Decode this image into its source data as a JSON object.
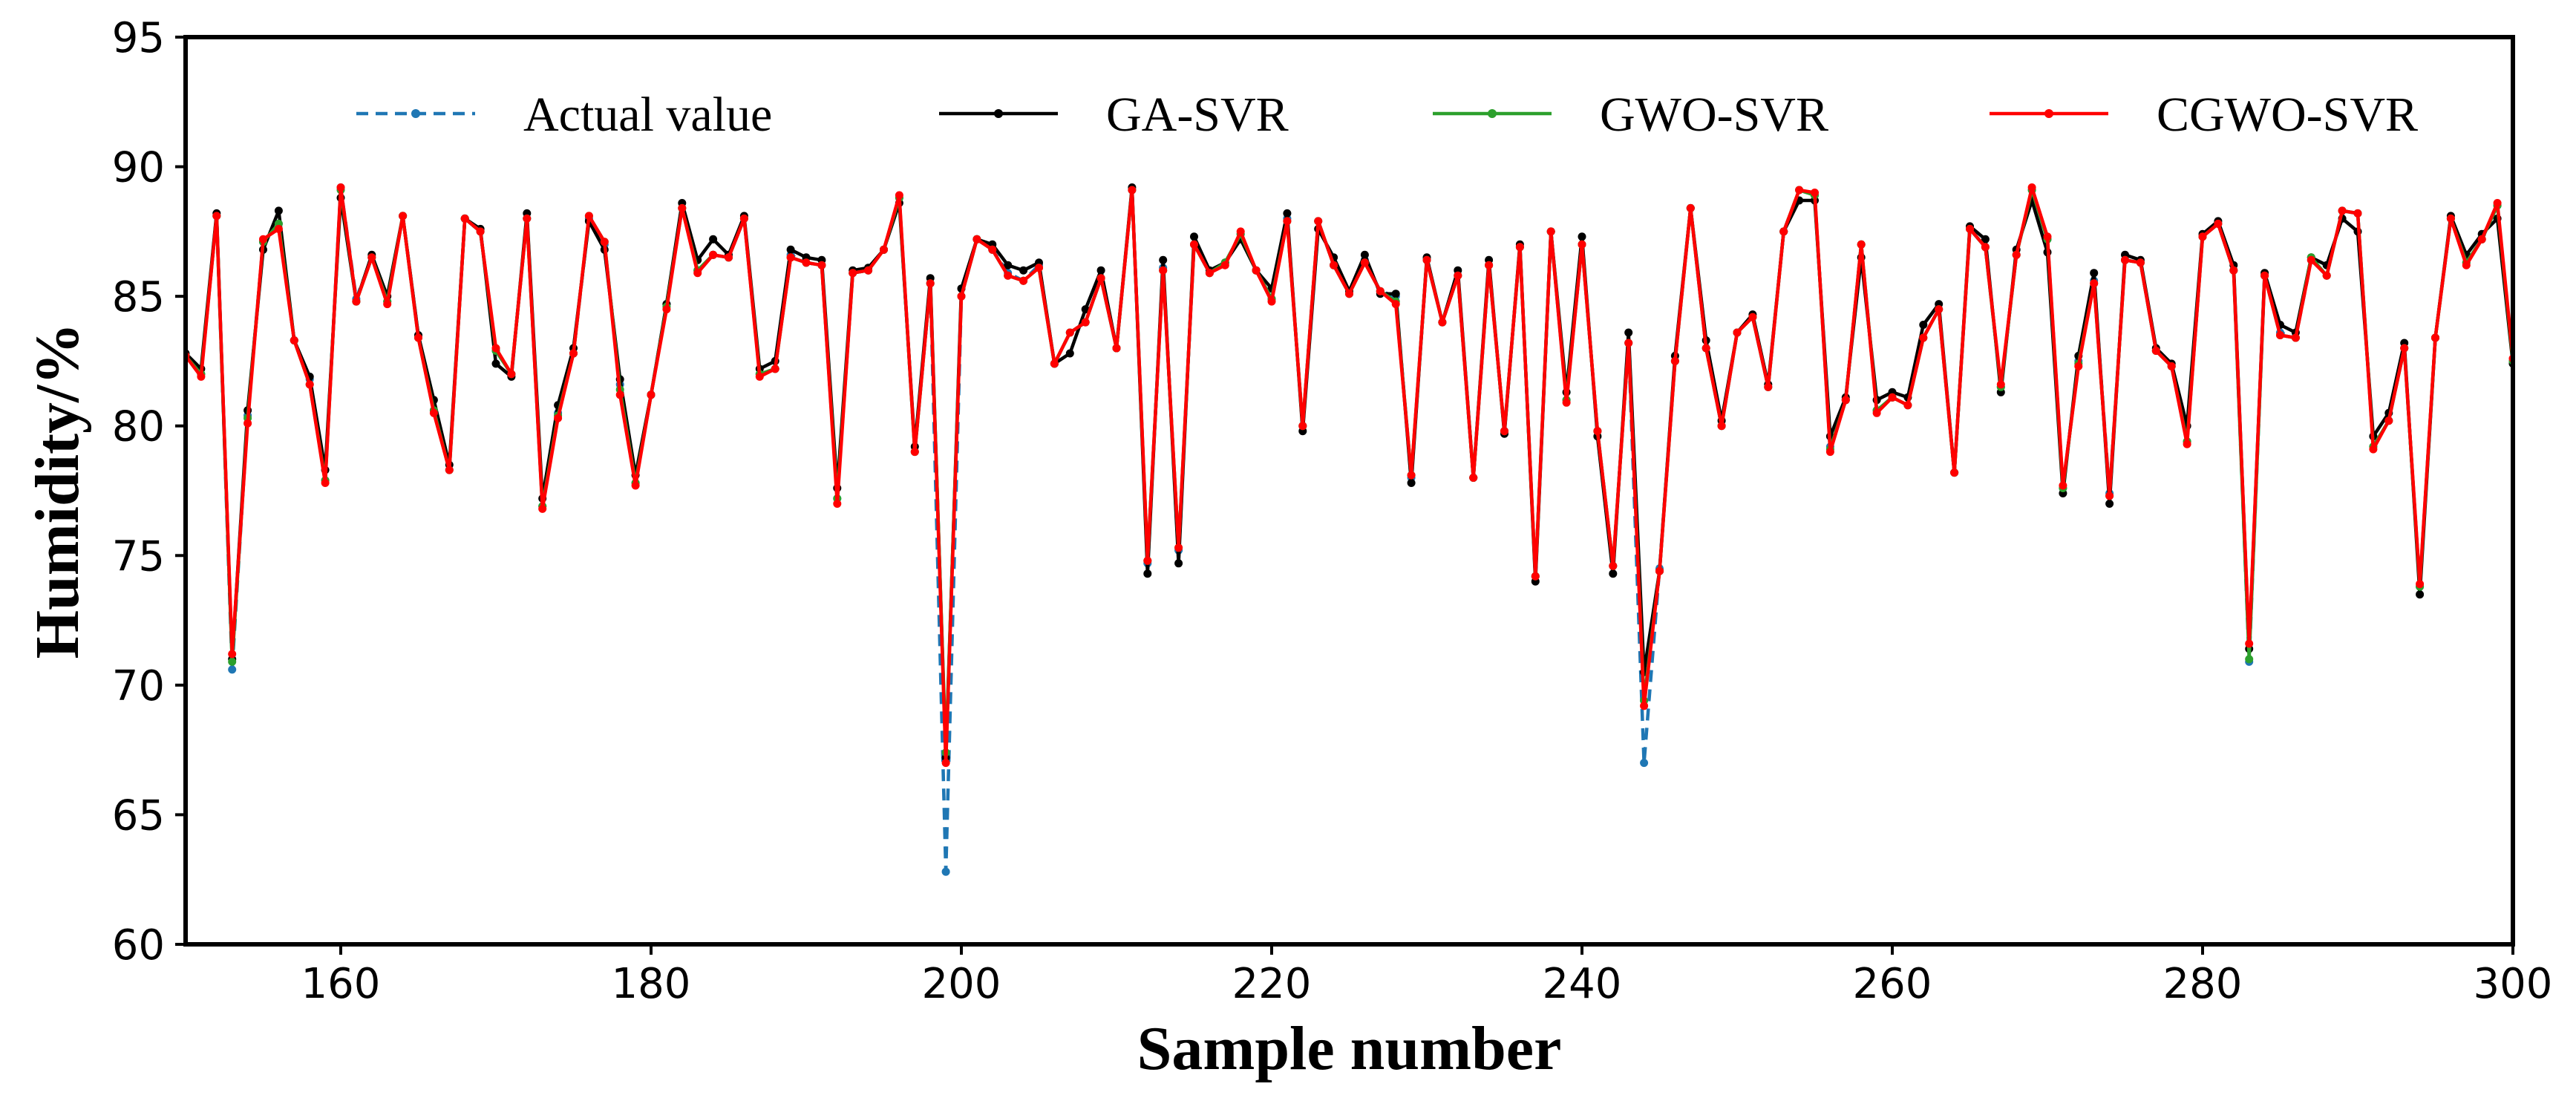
{
  "chart_data": {
    "type": "line",
    "title": "",
    "xlabel": "Sample number",
    "ylabel": "Humidity/%",
    "xlim": [
      150,
      300
    ],
    "ylim": [
      60,
      95
    ],
    "xticks": [
      160,
      180,
      200,
      220,
      240,
      260,
      280,
      300
    ],
    "yticks": [
      60,
      65,
      70,
      75,
      80,
      85,
      90,
      95
    ],
    "grid": false,
    "legend_position": "top",
    "x": [
      150,
      151,
      152,
      153,
      154,
      155,
      156,
      157,
      158,
      159,
      160,
      161,
      162,
      163,
      164,
      165,
      166,
      167,
      168,
      169,
      170,
      171,
      172,
      173,
      174,
      175,
      176,
      177,
      178,
      179,
      180,
      181,
      182,
      183,
      184,
      185,
      186,
      187,
      188,
      189,
      190,
      191,
      192,
      193,
      194,
      195,
      196,
      197,
      198,
      199,
      200,
      201,
      202,
      203,
      204,
      205,
      206,
      207,
      208,
      209,
      210,
      211,
      212,
      213,
      214,
      215,
      216,
      217,
      218,
      219,
      220,
      221,
      222,
      223,
      224,
      225,
      226,
      227,
      228,
      229,
      230,
      231,
      232,
      233,
      234,
      235,
      236,
      237,
      238,
      239,
      240,
      241,
      242,
      243,
      244,
      245,
      246,
      247,
      248,
      249,
      250,
      251,
      252,
      253,
      254,
      255,
      256,
      257,
      258,
      259,
      260,
      261,
      262,
      263,
      264,
      265,
      266,
      267,
      268,
      269,
      270,
      271,
      272,
      273,
      274,
      275,
      276,
      277,
      278,
      279,
      280,
      281,
      282,
      283,
      284,
      285,
      286,
      287,
      288,
      289,
      290,
      291,
      292,
      293,
      294,
      295,
      296,
      297,
      298,
      299,
      300
    ],
    "series": [
      {
        "name": "Actual value",
        "color": "#1f77b4",
        "style": "dashed",
        "values": [
          82.7,
          82.0,
          88.1,
          70.6,
          80.4,
          87.1,
          87.8,
          83.3,
          81.8,
          77.9,
          89.2,
          84.9,
          86.5,
          84.8,
          88.1,
          83.5,
          80.6,
          78.3,
          88.0,
          87.5,
          82.9,
          82.0,
          88.0,
          76.9,
          80.5,
          82.8,
          88.0,
          87.0,
          81.6,
          77.8,
          81.2,
          84.7,
          88.4,
          86.0,
          86.6,
          86.5,
          88.0,
          82.0,
          82.2,
          86.6,
          86.3,
          86.2,
          77.2,
          85.9,
          86.0,
          86.8,
          88.8,
          79.0,
          85.5,
          62.8,
          85.0,
          87.2,
          86.8,
          85.9,
          85.6,
          86.2,
          82.4,
          83.6,
          84.0,
          85.7,
          83.0,
          89.1,
          74.7,
          86.1,
          75.2,
          87.0,
          85.9,
          86.3,
          87.4,
          86.0,
          84.9,
          88.0,
          80.0,
          87.9,
          86.2,
          85.1,
          86.4,
          85.2,
          85.0,
          78.0,
          86.4,
          84.0,
          85.8,
          78.0,
          86.2,
          79.8,
          86.9,
          74.2,
          87.5,
          81.0,
          87.0,
          79.8,
          74.6,
          83.2,
          67.0,
          74.5,
          82.5,
          88.4,
          83.0,
          80.0,
          83.6,
          84.2,
          81.5,
          87.5,
          89.1,
          88.9,
          79.2,
          81.0,
          87.0,
          80.6,
          81.1,
          80.8,
          83.4,
          84.5,
          78.2,
          87.6,
          86.9,
          81.5,
          86.6,
          89.1,
          87.2,
          77.6,
          82.5,
          85.6,
          77.4,
          86.4,
          86.3,
          82.9,
          82.3,
          79.4,
          87.3,
          87.8,
          86.0,
          70.9,
          85.8,
          83.6,
          83.4,
          86.4,
          85.8,
          88.3,
          88.2,
          79.2,
          80.2,
          83.0,
          73.8,
          83.4,
          88.0,
          86.3,
          87.2,
          88.5,
          82.5
        ]
      },
      {
        "name": "GA-SVR",
        "color": "#000000",
        "style": "solid",
        "values": [
          82.8,
          82.2,
          88.2,
          71.0,
          80.6,
          86.8,
          88.3,
          83.3,
          81.9,
          78.3,
          88.8,
          84.8,
          86.6,
          85.0,
          88.1,
          83.5,
          81.0,
          78.5,
          88.0,
          87.6,
          82.4,
          81.9,
          88.2,
          77.2,
          80.8,
          83.0,
          87.9,
          86.8,
          81.8,
          78.1,
          81.2,
          84.7,
          88.6,
          86.4,
          87.2,
          86.6,
          88.1,
          82.2,
          82.5,
          86.8,
          86.5,
          86.4,
          77.6,
          86.0,
          86.1,
          86.8,
          88.6,
          79.2,
          85.7,
          67.2,
          85.3,
          87.2,
          87.0,
          86.2,
          86.0,
          86.3,
          82.4,
          82.8,
          84.5,
          86.0,
          83.0,
          89.2,
          74.3,
          86.4,
          74.7,
          87.3,
          86.0,
          86.3,
          87.2,
          86.0,
          85.3,
          88.2,
          79.8,
          87.6,
          86.5,
          85.2,
          86.6,
          85.1,
          85.1,
          77.8,
          86.5,
          84.0,
          86.0,
          78.0,
          86.4,
          79.7,
          87.0,
          74.0,
          87.5,
          81.3,
          87.3,
          79.6,
          74.3,
          83.6,
          70.5,
          74.4,
          82.7,
          88.4,
          83.3,
          80.2,
          83.6,
          84.3,
          81.6,
          87.5,
          88.7,
          88.7,
          79.6,
          81.1,
          86.5,
          81.0,
          81.3,
          81.1,
          83.9,
          84.7,
          78.2,
          87.7,
          87.2,
          81.3,
          86.8,
          88.7,
          86.7,
          77.4,
          82.7,
          85.9,
          77.0,
          86.6,
          86.4,
          83.0,
          82.4,
          80.0,
          87.4,
          87.9,
          86.2,
          71.4,
          85.9,
          83.9,
          83.6,
          86.5,
          86.2,
          88.0,
          87.5,
          79.6,
          80.5,
          83.2,
          73.5,
          83.4,
          88.1,
          86.6,
          87.4,
          88.0,
          82.4
        ]
      },
      {
        "name": "GWO-SVR",
        "color": "#2ca02c",
        "style": "solid",
        "values": [
          82.7,
          82.0,
          88.1,
          70.9,
          80.3,
          87.1,
          87.8,
          83.3,
          81.6,
          77.9,
          89.1,
          84.8,
          86.5,
          84.8,
          88.1,
          83.4,
          80.6,
          78.3,
          88.0,
          87.5,
          82.9,
          82.0,
          88.0,
          76.9,
          80.4,
          82.8,
          88.1,
          87.1,
          81.4,
          77.8,
          81.2,
          84.6,
          88.4,
          86.0,
          86.6,
          86.5,
          88.0,
          82.0,
          82.2,
          86.5,
          86.3,
          86.2,
          77.2,
          85.9,
          86.0,
          86.8,
          88.8,
          79.0,
          85.5,
          67.4,
          85.0,
          87.2,
          86.8,
          85.8,
          85.6,
          86.1,
          82.4,
          83.6,
          84.0,
          85.7,
          83.0,
          89.1,
          74.8,
          86.0,
          75.3,
          87.0,
          85.9,
          86.3,
          87.4,
          86.0,
          84.9,
          87.9,
          80.0,
          87.9,
          86.2,
          85.1,
          86.3,
          85.2,
          84.8,
          78.1,
          86.4,
          84.0,
          85.8,
          78.0,
          86.2,
          79.8,
          86.9,
          74.2,
          87.5,
          81.0,
          87.0,
          79.8,
          74.6,
          83.2,
          69.4,
          74.4,
          82.5,
          88.4,
          83.0,
          80.0,
          83.6,
          84.2,
          81.5,
          87.5,
          89.1,
          88.9,
          79.1,
          81.0,
          87.0,
          80.6,
          81.1,
          80.8,
          83.4,
          84.5,
          78.2,
          87.6,
          86.9,
          81.5,
          86.6,
          89.1,
          87.2,
          77.6,
          82.4,
          85.5,
          77.3,
          86.4,
          86.3,
          82.9,
          82.3,
          79.4,
          87.3,
          87.8,
          86.0,
          71.0,
          85.8,
          83.5,
          83.4,
          86.5,
          85.8,
          88.3,
          88.2,
          79.2,
          80.2,
          83.0,
          73.8,
          83.4,
          88.0,
          86.3,
          87.2,
          88.5,
          82.5
        ]
      },
      {
        "name": "CGWO-SVR",
        "color": "#ff0000",
        "style": "solid",
        "values": [
          82.7,
          81.9,
          88.1,
          71.2,
          80.1,
          87.2,
          87.6,
          83.3,
          81.6,
          77.8,
          89.2,
          84.8,
          86.5,
          84.7,
          88.1,
          83.4,
          80.5,
          78.3,
          88.0,
          87.5,
          83.0,
          82.0,
          88.0,
          76.8,
          80.3,
          82.8,
          88.1,
          87.1,
          81.2,
          77.7,
          81.2,
          84.5,
          88.4,
          85.9,
          86.6,
          86.5,
          88.0,
          81.9,
          82.2,
          86.5,
          86.3,
          86.2,
          77.0,
          85.9,
          86.0,
          86.8,
          88.9,
          79.0,
          85.5,
          67.0,
          85.0,
          87.2,
          86.8,
          85.8,
          85.6,
          86.1,
          82.4,
          83.6,
          84.0,
          85.7,
          83.0,
          89.1,
          74.8,
          86.0,
          75.3,
          87.0,
          85.9,
          86.2,
          87.5,
          86.0,
          84.8,
          87.9,
          80.0,
          87.9,
          86.2,
          85.1,
          86.3,
          85.2,
          84.7,
          78.1,
          86.4,
          84.0,
          85.8,
          78.0,
          86.2,
          79.8,
          86.9,
          74.2,
          87.5,
          80.9,
          87.0,
          79.8,
          74.6,
          83.2,
          69.2,
          74.4,
          82.5,
          88.4,
          83.0,
          80.0,
          83.6,
          84.2,
          81.5,
          87.5,
          89.1,
          89.0,
          79.0,
          81.0,
          87.0,
          80.5,
          81.1,
          80.8,
          83.4,
          84.5,
          78.2,
          87.6,
          86.9,
          81.6,
          86.6,
          89.2,
          87.3,
          77.7,
          82.3,
          85.5,
          77.3,
          86.4,
          86.3,
          82.9,
          82.3,
          79.3,
          87.3,
          87.8,
          86.0,
          71.6,
          85.8,
          83.5,
          83.4,
          86.4,
          85.8,
          88.3,
          88.2,
          79.1,
          80.2,
          83.0,
          73.9,
          83.4,
          88.0,
          86.2,
          87.2,
          88.6,
          82.6
        ]
      }
    ]
  }
}
